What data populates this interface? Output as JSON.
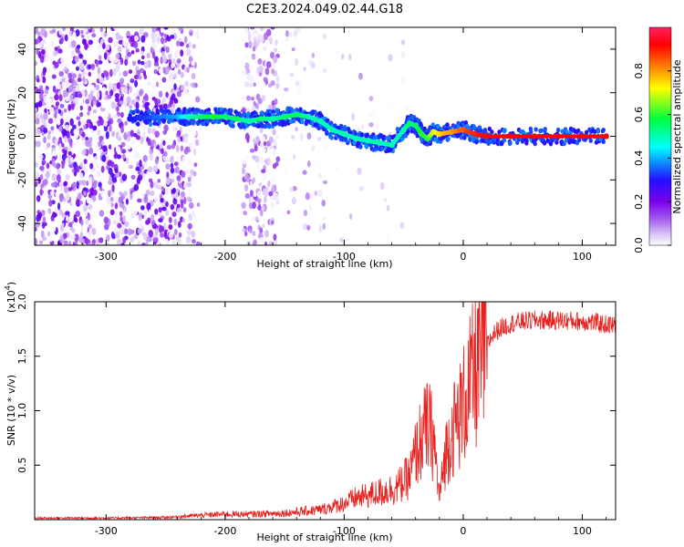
{
  "title": "C2E3.2024.049.02.44.G18",
  "colors": {
    "snr_line": "#e8201e",
    "colormap": [
      "#ffffff",
      "#d9c4f7",
      "#a35cf0",
      "#7a00e8",
      "#2010ff",
      "#00ffff",
      "#00ff3c",
      "#ffff00",
      "#ff8000",
      "#ff0000",
      "#ff2060"
    ]
  },
  "chart_data": [
    {
      "type": "heatmap",
      "xlabel": "Height of straight line (km)",
      "ylabel": "Frequency (Hz)",
      "xlim": [
        -360,
        128
      ],
      "ylim": [
        -50,
        50
      ],
      "xticks": [
        -300,
        -200,
        -100,
        0,
        100
      ],
      "yticks": [
        -40,
        -20,
        0,
        20,
        40
      ],
      "xtick_labels": [
        "-300",
        "-200",
        "-100",
        "0",
        "100"
      ],
      "ytick_labels": [
        "-40",
        "-20",
        "0",
        "20",
        "40"
      ],
      "colorbar": {
        "label": "Normalized spectral amplitude",
        "range": [
          0,
          1
        ],
        "ticks": [
          0.0,
          0.2,
          0.4,
          0.6,
          0.8
        ],
        "tick_labels": [
          "0.0",
          "0.2",
          "0.4",
          "0.6",
          "0.8"
        ]
      },
      "ridge": {
        "x": [
          -280,
          -260,
          -240,
          -230,
          -220,
          -210,
          -200,
          -190,
          -180,
          -170,
          -160,
          -150,
          -140,
          -130,
          -120,
          -110,
          -100,
          -90,
          -80,
          -70,
          -60,
          -50,
          -45,
          -40,
          -35,
          -30,
          -25,
          -20,
          -10,
          0,
          10,
          20,
          40,
          60,
          80,
          100,
          120
        ],
        "y": [
          8,
          9,
          9,
          9,
          9,
          9,
          9,
          8,
          7,
          8,
          8,
          9,
          10,
          9,
          7,
          3,
          1,
          -1,
          -2,
          -3,
          -4,
          3,
          6,
          5,
          1,
          -1,
          2,
          1,
          2,
          3,
          1,
          0,
          0,
          0,
          0,
          0,
          0
        ],
        "amplitude": [
          0.3,
          0.35,
          0.4,
          0.5,
          0.55,
          0.6,
          0.55,
          0.55,
          0.5,
          0.55,
          0.5,
          0.55,
          0.55,
          0.5,
          0.5,
          0.5,
          0.5,
          0.5,
          0.5,
          0.5,
          0.5,
          0.5,
          0.55,
          0.55,
          0.6,
          0.6,
          0.7,
          0.75,
          0.8,
          0.85,
          0.9,
          0.92,
          0.92,
          0.92,
          0.92,
          0.92,
          0.92
        ]
      }
    },
    {
      "type": "line",
      "xlabel": "Height of straight line (km)",
      "ylabel": "SNR (10 * v/v)",
      "scale_label": "(x10",
      "scale_exp": "4",
      "scale_close": ")",
      "xlim": [
        -360,
        128
      ],
      "ylim": [
        0,
        20000
      ],
      "xticks": [
        -300,
        -200,
        -100,
        0,
        100
      ],
      "yticks": [
        5000,
        10000,
        15000,
        20000
      ],
      "xtick_labels": [
        "-300",
        "-200",
        "-100",
        "0",
        "100"
      ],
      "ytick_labels": [
        "0.5",
        "1.0",
        "1.5",
        "2.0"
      ],
      "series": [
        {
          "x": [
            -360,
            -300,
            -250,
            -220,
            -200,
            -180,
            -150,
            -120,
            -110,
            -100,
            -90,
            -80,
            -70,
            -60,
            -55,
            -50,
            -45,
            -40,
            -35,
            -30,
            -25,
            -20,
            -15,
            -10,
            -5,
            0,
            5,
            10,
            15,
            20,
            25,
            30,
            40,
            50,
            60,
            80,
            100,
            110,
            120,
            128
          ],
          "y": [
            150,
            150,
            200,
            400,
            500,
            500,
            600,
            900,
            1200,
            1500,
            2000,
            2200,
            2500,
            2800,
            3000,
            3500,
            4000,
            6000,
            7500,
            8500,
            7500,
            2000,
            6000,
            8000,
            9000,
            10500,
            12000,
            13500,
            15000,
            16000,
            17000,
            17500,
            18000,
            18200,
            18300,
            18300,
            18200,
            18100,
            17900,
            17800
          ]
        }
      ]
    }
  ]
}
